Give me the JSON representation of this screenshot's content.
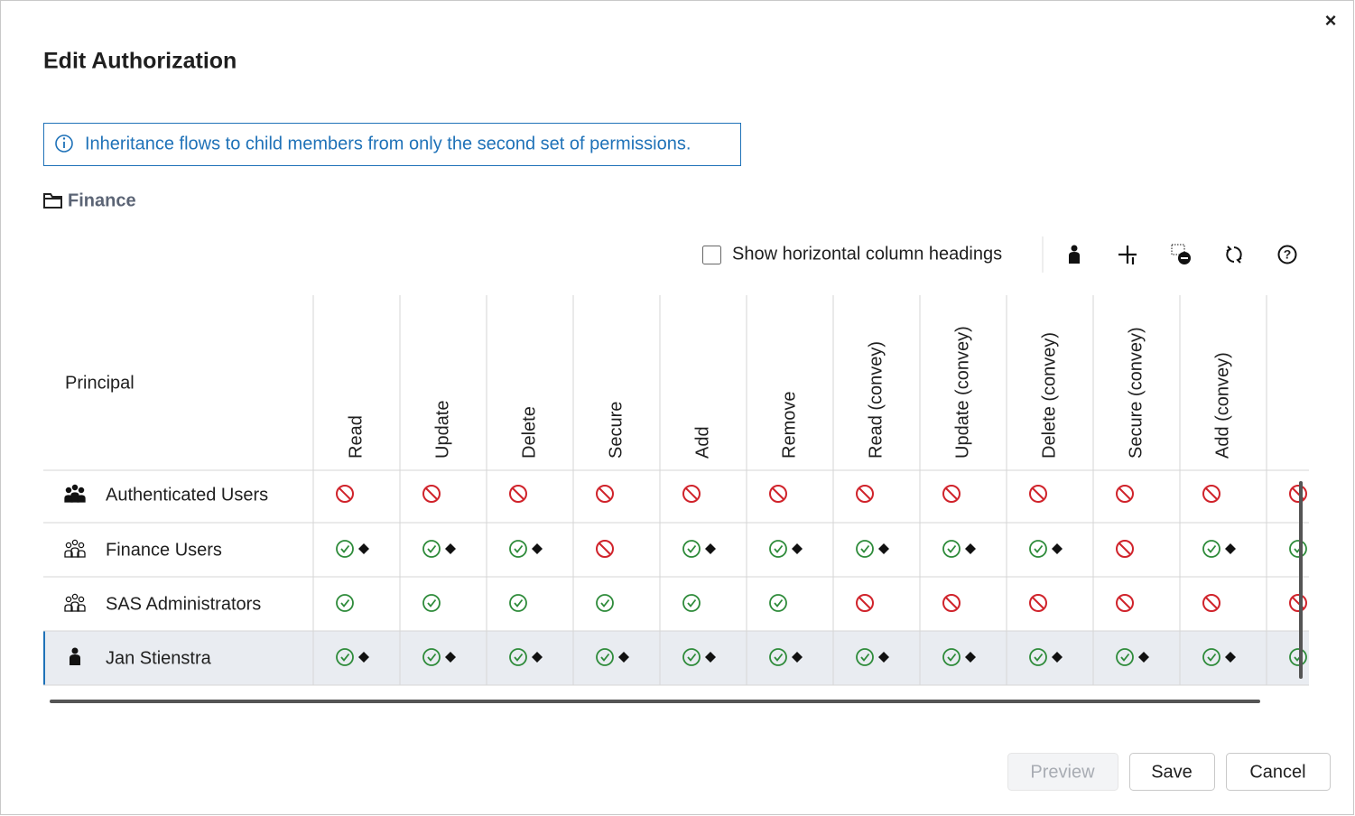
{
  "dialog": {
    "title": "Edit Authorization",
    "close": "×"
  },
  "info": "Inheritance flows to child members from only the second set of permissions.",
  "folder": "Finance",
  "toolbar": {
    "checkbox_label": "Show horizontal column headings"
  },
  "table": {
    "principal_header": "Principal",
    "columns": [
      "Read",
      "Update",
      "Delete",
      "Secure",
      "Add",
      "Remove",
      "Read (convey)",
      "Update (convey)",
      "Delete (convey)",
      "Secure (convey)",
      "Add (convey)"
    ],
    "rows": [
      "Authenticated Users",
      "Finance Users",
      "SAS Administrators",
      "Jan Stienstra"
    ]
  },
  "buttons": [
    "Preview",
    "Save",
    "Cancel"
  ]
}
